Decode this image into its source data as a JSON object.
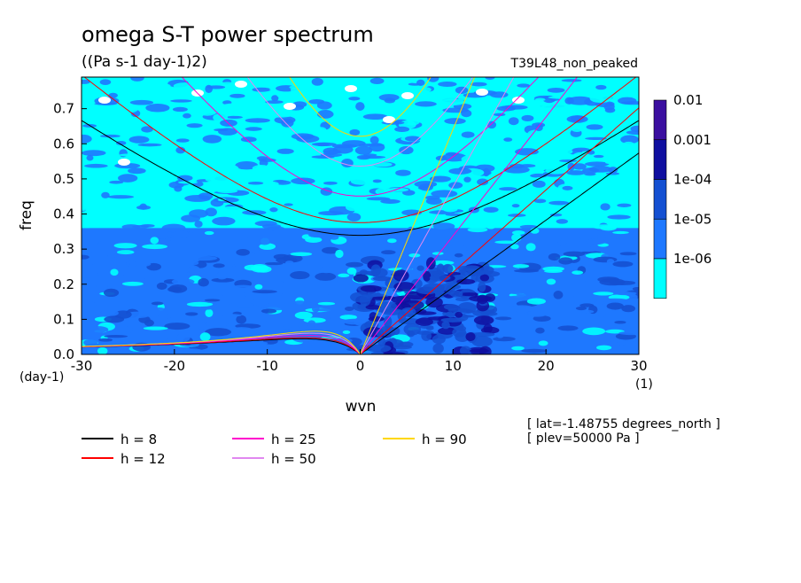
{
  "chart_data": {
    "type": "heatmap",
    "title": "omega S-T power spectrum",
    "subtitle": "((Pa s-1 day-1)2)",
    "dataset_label": "T39L48_non_peaked",
    "xlabel": "wvn",
    "ylabel": "freq",
    "x_unit": "(1)",
    "y_unit": "(day-1)",
    "xlim": [
      -30,
      30
    ],
    "ylim": [
      0,
      0.79
    ],
    "x_ticks": [
      "-30",
      "-20",
      "-10",
      "0",
      "10",
      "20",
      "30"
    ],
    "y_ticks": [
      "0.0",
      "0.1",
      "0.2",
      "0.3",
      "0.4",
      "0.5",
      "0.6",
      "0.7"
    ],
    "colorbar": {
      "labels": [
        "0.01",
        "0.001",
        "1e-04",
        "1e-05",
        "1e-06"
      ],
      "colors": [
        "#3b0fa0",
        "#0f0fa0",
        "#1450d2",
        "#1e78ff",
        "#00ffff"
      ]
    },
    "colors": {
      "white_patch": "#ffffff",
      "cyan": "#00ffff",
      "mid_blue": "#1e78ff",
      "blue": "#1450d2",
      "dark_blue": "#0f0fa0"
    },
    "legend": [
      {
        "label": "h =  8",
        "color": "#000000",
        "h": 8
      },
      {
        "label": "h = 12",
        "color": "#ff0000",
        "h": 12
      },
      {
        "label": "h = 25",
        "color": "#ff00cc",
        "h": 25
      },
      {
        "label": "h = 50",
        "color": "#e088f0",
        "h": 50
      },
      {
        "label": "h = 90",
        "color": "#ffd700",
        "h": 90
      }
    ],
    "dispersion_curves": "equatorial wave dispersion lines (Kelvin, inertio-gravity n=1, mixed Rossby-gravity) for equivalent depths h = 8, 12, 25, 50, 90 m",
    "annotations": [
      "[ lat=-1.48755 degrees_north ]",
      "[ plev=50000 Pa ]"
    ]
  }
}
